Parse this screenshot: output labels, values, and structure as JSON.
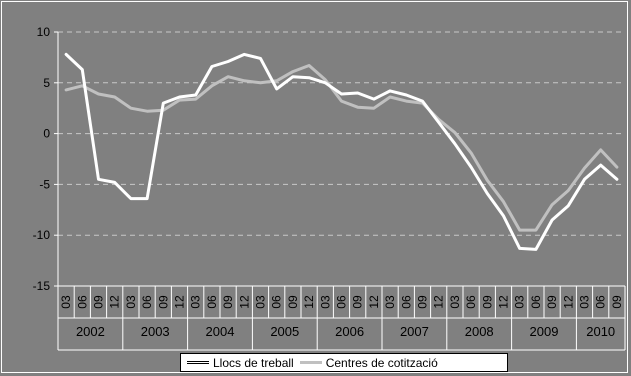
{
  "chart_data": {
    "type": "line",
    "title": "",
    "xlabel": "",
    "ylabel": "",
    "ylim": [
      -15,
      10
    ],
    "yticks": [
      10,
      5,
      0,
      -5,
      -10,
      -15
    ],
    "ytick_labels": [
      "10",
      "5",
      "0",
      "-5",
      "-10",
      "-15"
    ],
    "grid": "horizontal dashed",
    "legend": "bottom",
    "background": "#808080",
    "x": [
      "03",
      "06",
      "09",
      "12",
      "03",
      "06",
      "09",
      "12",
      "03",
      "06",
      "09",
      "12",
      "03",
      "06",
      "09",
      "12",
      "03",
      "06",
      "09",
      "12",
      "03",
      "06",
      "09",
      "12",
      "03",
      "06",
      "09",
      "12",
      "03",
      "06",
      "09",
      "12",
      "03",
      "06",
      "09"
    ],
    "years": [
      {
        "label": "2002",
        "count": 4
      },
      {
        "label": "2003",
        "count": 4
      },
      {
        "label": "2004",
        "count": 4
      },
      {
        "label": "2005",
        "count": 4
      },
      {
        "label": "2006",
        "count": 4
      },
      {
        "label": "2007",
        "count": 4
      },
      {
        "label": "2008",
        "count": 4
      },
      {
        "label": "2009",
        "count": 4
      },
      {
        "label": "2010",
        "count": 3
      }
    ],
    "series": [
      {
        "name": "Llocs de treball",
        "color": "#ffffff",
        "values": [
          7.8,
          6.3,
          -4.5,
          -4.8,
          -6.4,
          -6.4,
          3.0,
          3.6,
          3.8,
          6.6,
          7.1,
          7.8,
          7.4,
          4.4,
          5.6,
          5.5,
          5.0,
          3.9,
          4.0,
          3.4,
          4.2,
          3.8,
          3.2,
          1.1,
          -1.0,
          -3.3,
          -5.9,
          -8.1,
          -11.3,
          -11.4,
          -8.5,
          -7.1,
          -4.5,
          -3.1,
          -4.5
        ]
      },
      {
        "name": "Centres de cotització",
        "color": "#c0c0c0",
        "values": [
          4.3,
          4.7,
          3.9,
          3.6,
          2.5,
          2.2,
          2.3,
          3.3,
          3.4,
          4.7,
          5.6,
          5.2,
          5.0,
          5.2,
          6.1,
          6.7,
          5.3,
          3.2,
          2.6,
          2.5,
          3.6,
          3.2,
          3.0,
          1.4,
          0.1,
          -1.9,
          -4.6,
          -6.7,
          -9.5,
          -9.5,
          -7.0,
          -5.6,
          -3.4,
          -1.6,
          -3.3
        ]
      }
    ]
  }
}
